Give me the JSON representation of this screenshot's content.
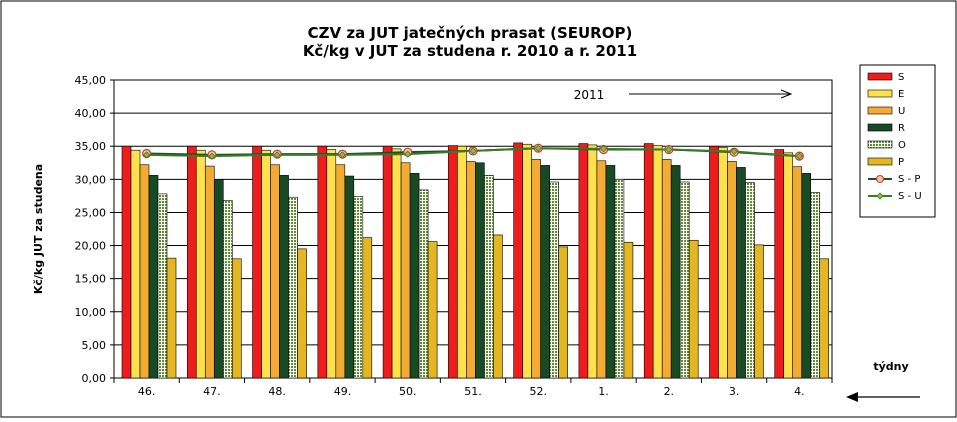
{
  "chart_data": {
    "type": "bar",
    "title_line1": "CZV za JUT jatečných prasat (SEUROP)",
    "title_line2": "Kč/kg v JUT za studena r. 2010 a r. 2011",
    "ylabel": "Kč/kg  JUT za studena",
    "xlabel": "týdny",
    "annotation": "2011",
    "ylim": [
      0,
      45
    ],
    "yticks": [
      "0,00",
      "5,00",
      "10,00",
      "15,00",
      "20,00",
      "25,00",
      "30,00",
      "35,00",
      "40,00",
      "45,00"
    ],
    "categories": [
      "46.",
      "47.",
      "48.",
      "49.",
      "50.",
      "51.",
      "52.",
      "1.",
      "2.",
      "3.",
      "4."
    ],
    "series": [
      {
        "name": "S",
        "color": "#ee1c1c",
        "values": [
          35.0,
          35.0,
          35.0,
          35.0,
          35.0,
          35.1,
          35.5,
          35.4,
          35.4,
          35.0,
          34.5
        ]
      },
      {
        "name": "E",
        "color": "#ffe14d",
        "values": [
          34.4,
          34.4,
          34.4,
          34.5,
          34.6,
          35.0,
          35.3,
          35.2,
          35.1,
          34.8,
          34.0
        ]
      },
      {
        "name": "U",
        "color": "#f2ab35",
        "values": [
          32.2,
          32.0,
          32.2,
          32.2,
          32.5,
          32.7,
          33.0,
          32.8,
          33.0,
          32.7,
          31.9
        ]
      },
      {
        "name": "R",
        "color": "#184a25",
        "values": [
          30.6,
          30.0,
          30.6,
          30.5,
          30.9,
          32.5,
          32.1,
          32.1,
          32.1,
          31.8,
          30.9
        ]
      },
      {
        "name": "O",
        "color": "#5e8f2c",
        "pattern": true,
        "values": [
          27.8,
          26.8,
          27.3,
          27.4,
          28.4,
          30.6,
          29.6,
          30.0,
          29.6,
          29.5,
          28.0
        ]
      },
      {
        "name": "P",
        "color": "#e3b622",
        "values": [
          18.1,
          18.0,
          19.5,
          21.2,
          20.6,
          21.6,
          19.8,
          20.5,
          20.8,
          20.1,
          18.0
        ]
      }
    ],
    "lines": [
      {
        "name": "S - P",
        "color": "#1d4d2c",
        "marker": "circle",
        "marker_color": "#f4c4a8",
        "marker_edge": "#c04020",
        "values": [
          33.9,
          33.7,
          33.8,
          33.8,
          34.1,
          34.3,
          34.7,
          34.5,
          34.5,
          34.1,
          33.5
        ]
      },
      {
        "name": "S - U",
        "color": "#3b7a2b",
        "marker": "diamond",
        "marker_color": "#8abf3a",
        "values": [
          33.7,
          33.5,
          33.7,
          33.7,
          33.8,
          34.3,
          34.7,
          34.6,
          34.5,
          34.2,
          33.5
        ]
      }
    ],
    "grid": true,
    "legend_position": "right"
  }
}
